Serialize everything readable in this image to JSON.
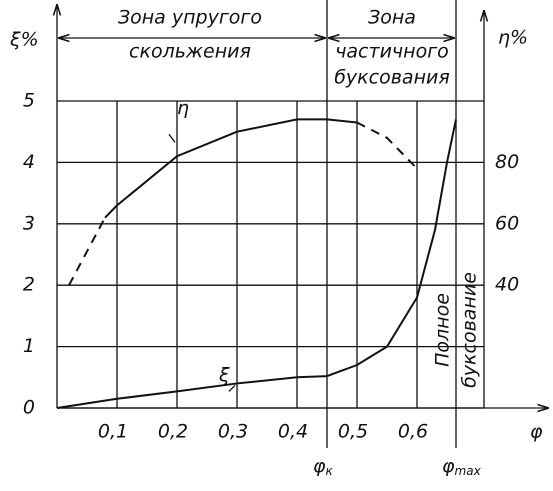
{
  "chart_data": {
    "type": "line",
    "x_label": "φ",
    "y_label": "ξ%",
    "y2_label": "η%",
    "xlim": [
      0,
      0.8
    ],
    "ylim": [
      0,
      5
    ],
    "y2lim": [
      0,
      100
    ],
    "xticks": [
      {
        "value": 0.1,
        "label": "0,1"
      },
      {
        "value": 0.2,
        "label": "0,2"
      },
      {
        "value": 0.3,
        "label": "0,3"
      },
      {
        "value": 0.4,
        "label": "0,4"
      },
      {
        "value": 0.5,
        "label": "0,5"
      },
      {
        "value": 0.6,
        "label": "0,6"
      }
    ],
    "yticks": [
      0,
      1,
      2,
      3,
      4,
      5
    ],
    "y2ticks": [
      40,
      60,
      80
    ],
    "grid": true,
    "markers": [
      {
        "value": 0.45,
        "symbol": "φ",
        "subscript": "к"
      },
      {
        "value": 0.665,
        "symbol": "φ",
        "subscript": "max"
      }
    ],
    "zones": [
      {
        "lines": [
          "Зона упругого",
          "скольжения"
        ]
      },
      {
        "lines": [
          "Зона",
          "частичного",
          "буксования"
        ]
      },
      {
        "lines": [
          "Полное",
          "буксование"
        ]
      }
    ],
    "series": [
      {
        "label": "ξ",
        "axis": "y",
        "color": "#111",
        "dashed": false,
        "x": [
          0,
          0.1,
          0.2,
          0.3,
          0.4,
          0.45,
          0.5,
          0.55,
          0.6,
          0.63,
          0.65,
          0.665
        ],
        "values": [
          0,
          0.15,
          0.27,
          0.4,
          0.5,
          0.52,
          0.7,
          1.0,
          1.8,
          2.9,
          4.0,
          4.7
        ]
      },
      {
        "axis": "y2",
        "color": "#111",
        "dashed": true,
        "x": [
          0.02,
          0.05,
          0.08
        ],
        "values": [
          40,
          51,
          62
        ]
      },
      {
        "label": "η",
        "axis": "y2",
        "color": "#111",
        "dashed": false,
        "x": [
          0.08,
          0.1,
          0.2,
          0.3,
          0.4,
          0.45,
          0.5
        ],
        "values": [
          62,
          66,
          82,
          90,
          94,
          94,
          93
        ]
      },
      {
        "axis": "y2",
        "color": "#111",
        "dashed": true,
        "x": [
          0.5,
          0.55,
          0.6
        ],
        "values": [
          93,
          88,
          78
        ]
      }
    ]
  }
}
